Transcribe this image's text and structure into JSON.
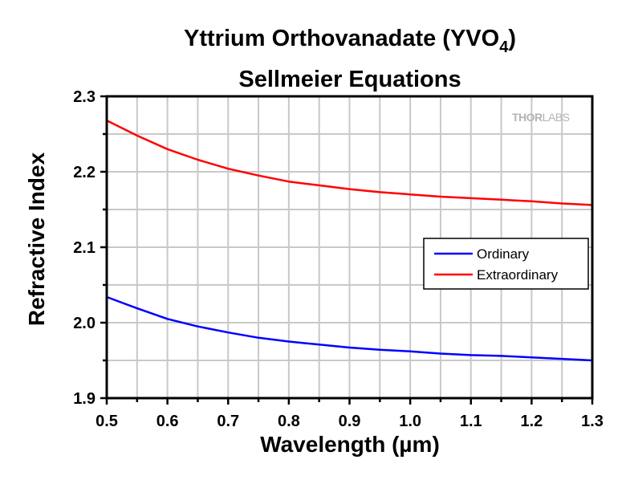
{
  "chart_data": {
    "type": "line",
    "title": "Yttrium Orthovanadate (YVO",
    "title_subscript": "4",
    "title_close": ")",
    "subtitle": "Sellmeier Equations",
    "xlabel": "Wavelength (µm)",
    "ylabel": "Refractive Index",
    "xlim": [
      0.5,
      1.3
    ],
    "ylim": [
      1.9,
      2.3
    ],
    "x_ticks": [
      0.5,
      0.6,
      0.7,
      0.8,
      0.9,
      1.0,
      1.1,
      1.2,
      1.3
    ],
    "x_tick_labels": [
      "0.5",
      "0.6",
      "0.7",
      "0.8",
      "0.9",
      "1.0",
      "1.1",
      "1.2",
      "1.3"
    ],
    "x_minor_step": 0.05,
    "y_ticks": [
      1.9,
      2.0,
      2.1,
      2.2,
      2.3
    ],
    "y_tick_labels": [
      "1.9",
      "2.0",
      "2.1",
      "2.2",
      "2.3"
    ],
    "y_minor_step": 0.05,
    "grid": true,
    "legend_position": "center-right",
    "watermark": {
      "bold": "THOR",
      "light": "LABS"
    },
    "x": [
      0.5,
      0.55,
      0.6,
      0.65,
      0.7,
      0.75,
      0.8,
      0.85,
      0.9,
      0.95,
      1.0,
      1.05,
      1.1,
      1.15,
      1.2,
      1.25,
      1.3
    ],
    "series": [
      {
        "name": "Ordinary",
        "color": "#0000ff",
        "values": [
          2.034,
          2.019,
          2.005,
          1.995,
          1.987,
          1.98,
          1.975,
          1.971,
          1.967,
          1.964,
          1.962,
          1.959,
          1.957,
          1.956,
          1.954,
          1.952,
          1.95
        ]
      },
      {
        "name": "Extraordinary",
        "color": "#ff0000",
        "values": [
          2.268,
          2.248,
          2.23,
          2.216,
          2.204,
          2.195,
          2.187,
          2.182,
          2.177,
          2.173,
          2.17,
          2.167,
          2.165,
          2.163,
          2.161,
          2.158,
          2.156
        ]
      }
    ]
  }
}
